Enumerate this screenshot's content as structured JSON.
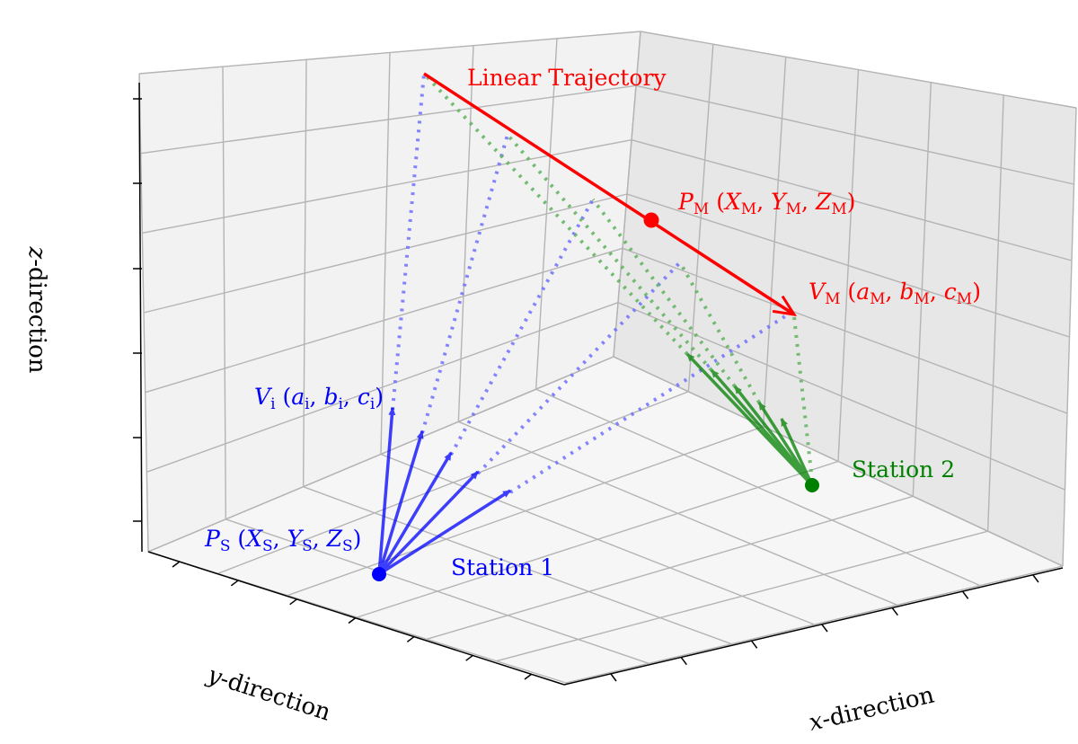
{
  "labels": {
    "trajectory": "Linear Trajectory",
    "station1": "Station 1",
    "station2": "Station 2",
    "axis_x_sym": "x",
    "axis_y_sym": "y",
    "axis_z_sym": "z",
    "axis_suffix": "-direction",
    "PM": {
      "sym": "P",
      "sub": "M",
      "coords": [
        [
          "X",
          "M"
        ],
        [
          "Y",
          "M"
        ],
        [
          "Z",
          "M"
        ]
      ]
    },
    "VM": {
      "sym": "V",
      "sub": "M",
      "coords": [
        [
          "a",
          "M"
        ],
        [
          "b",
          "M"
        ],
        [
          "c",
          "M"
        ]
      ]
    },
    "PS": {
      "sym": "P",
      "sub": "S",
      "coords": [
        [
          "X",
          "S"
        ],
        [
          "Y",
          "S"
        ],
        [
          "Z",
          "S"
        ]
      ]
    },
    "Vi": {
      "sym": "V",
      "sub": "i",
      "coords": [
        [
          "a",
          "i"
        ],
        [
          "b",
          "i"
        ],
        [
          "c",
          "i"
        ]
      ]
    }
  },
  "colors": {
    "trajectory": "#ff0000",
    "station1": "#0000ff",
    "station2": "#008000",
    "grid": "#b0b0b0",
    "pane_left": "#f2f2f2",
    "pane_back": "#e8e8e8",
    "pane_floor": "#f5f5f5"
  }
}
